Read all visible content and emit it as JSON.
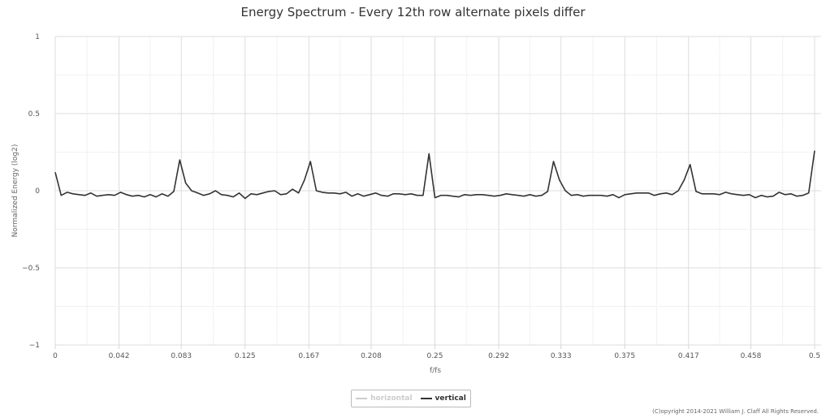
{
  "chart_data": {
    "type": "line",
    "title": "Energy Spectrum - Every 12th row alternate pixels differ",
    "xlabel": "f/fs",
    "ylabel": "Normalized Energy (log2)",
    "xlim": [
      0,
      0.5
    ],
    "ylim": [
      -1,
      1
    ],
    "x_ticks": [
      0,
      0.042,
      0.083,
      0.125,
      0.167,
      0.208,
      0.25,
      0.292,
      0.333,
      0.375,
      0.417,
      0.458,
      0.5
    ],
    "x_tick_labels": [
      "0",
      "0.042",
      "0.083",
      "0.125",
      "0.167",
      "0.208",
      "0.25",
      "0.292",
      "0.333",
      "0.375",
      "0.417",
      "0.458",
      "0.5"
    ],
    "y_ticks": [
      -1,
      -0.5,
      0,
      0.5,
      1
    ],
    "y_tick_labels": [
      "−1",
      "−0.5",
      "0",
      "0.5",
      "1"
    ],
    "grid": true,
    "legend_position": "bottom-center",
    "series": [
      {
        "name": "horizontal",
        "visible": false,
        "color": "#cccccc",
        "x": [],
        "y": []
      },
      {
        "name": "vertical",
        "visible": true,
        "color": "#333333",
        "x": [
          0,
          0.0039,
          0.0078,
          0.0117,
          0.0156,
          0.0195,
          0.0234,
          0.0273,
          0.0312,
          0.0352,
          0.0391,
          0.043,
          0.0469,
          0.0508,
          0.0547,
          0.0586,
          0.0625,
          0.0664,
          0.0703,
          0.0742,
          0.0781,
          0.082,
          0.0859,
          0.0898,
          0.0938,
          0.0977,
          0.1016,
          0.1055,
          0.1094,
          0.1133,
          0.1172,
          0.1211,
          0.125,
          0.1289,
          0.1328,
          0.1367,
          0.1406,
          0.1445,
          0.1484,
          0.1523,
          0.1562,
          0.1602,
          0.1641,
          0.168,
          0.1719,
          0.1758,
          0.1797,
          0.1836,
          0.1875,
          0.1914,
          0.1953,
          0.1992,
          0.2031,
          0.207,
          0.2109,
          0.2148,
          0.2188,
          0.2227,
          0.2266,
          0.2305,
          0.2344,
          0.2383,
          0.2422,
          0.2461,
          0.25,
          0.2539,
          0.2578,
          0.2617,
          0.2656,
          0.2695,
          0.2734,
          0.2773,
          0.2812,
          0.2852,
          0.2891,
          0.293,
          0.2969,
          0.3008,
          0.3047,
          0.3086,
          0.3125,
          0.3164,
          0.3203,
          0.3242,
          0.3281,
          0.332,
          0.3359,
          0.3398,
          0.3438,
          0.3477,
          0.3516,
          0.3555,
          0.3594,
          0.3633,
          0.3672,
          0.3711,
          0.375,
          0.3789,
          0.3828,
          0.3867,
          0.3906,
          0.3945,
          0.3984,
          0.4023,
          0.4062,
          0.4102,
          0.4141,
          0.418,
          0.4219,
          0.4258,
          0.4297,
          0.4336,
          0.4375,
          0.4414,
          0.4453,
          0.4492,
          0.4531,
          0.457,
          0.4609,
          0.4648,
          0.4688,
          0.4727,
          0.4766,
          0.4805,
          0.4844,
          0.4883,
          0.4922,
          0.4961,
          0.5
        ],
        "y": [
          0.12,
          -0.03,
          -0.01,
          -0.02,
          -0.025,
          -0.03,
          -0.015,
          -0.035,
          -0.03,
          -0.025,
          -0.03,
          -0.01,
          -0.025,
          -0.035,
          -0.03,
          -0.04,
          -0.025,
          -0.04,
          -0.02,
          -0.035,
          -0.005,
          0.2,
          0.05,
          0.0,
          -0.015,
          -0.03,
          -0.02,
          0.0,
          -0.025,
          -0.03,
          -0.04,
          -0.015,
          -0.05,
          -0.02,
          -0.025,
          -0.015,
          -0.005,
          0.0,
          -0.025,
          -0.02,
          0.01,
          -0.015,
          0.07,
          0.19,
          0.0,
          -0.01,
          -0.015,
          -0.015,
          -0.02,
          -0.01,
          -0.035,
          -0.02,
          -0.035,
          -0.025,
          -0.015,
          -0.03,
          -0.035,
          -0.02,
          -0.02,
          -0.025,
          -0.02,
          -0.03,
          -0.03,
          0.24,
          -0.045,
          -0.03,
          -0.03,
          -0.035,
          -0.04,
          -0.025,
          -0.03,
          -0.025,
          -0.025,
          -0.03,
          -0.035,
          -0.03,
          -0.02,
          -0.025,
          -0.03,
          -0.035,
          -0.025,
          -0.035,
          -0.03,
          -0.005,
          0.19,
          0.07,
          0.0,
          -0.03,
          -0.025,
          -0.035,
          -0.03,
          -0.03,
          -0.03,
          -0.035,
          -0.025,
          -0.045,
          -0.025,
          -0.02,
          -0.015,
          -0.015,
          -0.015,
          -0.03,
          -0.02,
          -0.015,
          -0.025,
          0.0,
          0.07,
          0.17,
          -0.005,
          -0.02,
          -0.02,
          -0.02,
          -0.025,
          -0.01,
          -0.02,
          -0.025,
          -0.03,
          -0.025,
          -0.045,
          -0.03,
          -0.04,
          -0.035,
          -0.01,
          -0.025,
          -0.02,
          -0.035,
          -0.03,
          -0.015,
          0.26
        ]
      }
    ]
  },
  "credits": "(C)opyright 2014-2021 William J. Claff All Rights Reserved."
}
